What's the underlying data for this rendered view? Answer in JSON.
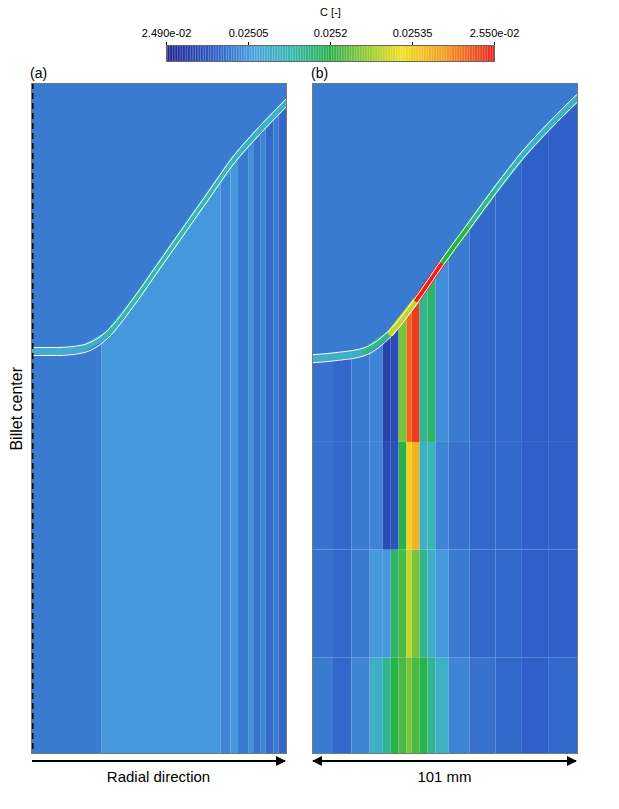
{
  "chart_data": {
    "type": "heatmap",
    "colorbar": {
      "label": "C [-]",
      "range": [
        0.0249,
        0.0255
      ],
      "ticks": [
        {
          "value": 0.0249,
          "label": "2.490e-02"
        },
        0.02505,
        0.0252,
        0.02535,
        {
          "value": 0.0255,
          "label": "2.550e-02"
        }
      ]
    },
    "ylabel": "Billet center",
    "tick_labels": false,
    "panels": [
      {
        "label": "(a)",
        "xlabel": "Radial direction",
        "xlim": [
          0,
          101
        ],
        "ylim": [
          0,
          280
        ],
        "x_edges": [
          0,
          28,
          75,
          79,
          82,
          86,
          88,
          91,
          93,
          96,
          98,
          101
        ],
        "y_edges": [
          0,
          280
        ],
        "values": [
          [
            0.02502,
            0.02505,
            0.02503,
            0.02505,
            0.02502,
            0.02504,
            0.02501,
            0.02503,
            0.025,
            0.02502,
            0.025
          ]
        ],
        "liquid_value": 0.02502,
        "front": {
          "x": [
            0,
            10,
            20,
            30,
            40,
            50,
            60,
            70,
            80,
            90,
            101
          ],
          "y": [
            168,
            168,
            169,
            175,
            188,
            203,
            218,
            233,
            248,
            260,
            272
          ],
          "values": [
            0.02508,
            0.02508,
            0.0251,
            0.02512,
            0.02512,
            0.02512,
            0.02512,
            0.02511,
            0.0251,
            0.0251,
            0.0251
          ]
        }
      },
      {
        "label": "(b)",
        "xlabel": "101 mm",
        "xlim": [
          0,
          101
        ],
        "ylim": [
          0,
          280
        ],
        "x_edges": [
          0,
          8,
          15,
          22,
          27,
          30,
          33,
          36,
          38,
          41,
          44,
          47,
          52,
          60,
          70,
          80,
          90,
          101
        ],
        "y_edges": [
          0,
          40,
          85,
          130,
          280
        ],
        "values": [
          [
            0.02502,
            0.025,
            0.02503,
            0.0251,
            0.02515,
            0.0252,
            0.02522,
            0.02525,
            0.02522,
            0.0252,
            0.02515,
            0.0251,
            0.02503,
            0.02501,
            0.025,
            0.02499,
            0.025
          ],
          [
            0.02501,
            0.025,
            0.02502,
            0.02505,
            0.02505,
            0.02518,
            0.02522,
            0.0253,
            0.02525,
            0.02515,
            0.0251,
            0.02505,
            0.02502,
            0.025,
            0.025,
            0.02499,
            0.02499
          ],
          [
            0.02501,
            0.025,
            0.02502,
            0.02503,
            0.02496,
            0.02497,
            0.0252,
            0.02535,
            0.02538,
            0.0251,
            0.02512,
            0.02503,
            0.02501,
            0.025,
            0.025,
            0.02499,
            0.02499
          ],
          [
            0.02501,
            0.025,
            0.02502,
            0.02503,
            0.02495,
            0.02496,
            0.02525,
            0.02545,
            0.02548,
            0.02515,
            0.02518,
            0.02504,
            0.02502,
            0.025,
            0.025,
            0.02499,
            0.02499
          ]
        ],
        "liquid_value": 0.02502,
        "front": {
          "x": [
            0,
            10,
            20,
            30,
            40,
            50,
            60,
            70,
            80,
            90,
            101
          ],
          "y": [
            165,
            166,
            168,
            176,
            190,
            206,
            221,
            236,
            250,
            262,
            274
          ],
          "values": [
            0.0251,
            0.0251,
            0.02515,
            0.0253,
            0.0255,
            0.0252,
            0.02515,
            0.02512,
            0.0251,
            0.0251,
            0.0251
          ]
        }
      }
    ]
  }
}
